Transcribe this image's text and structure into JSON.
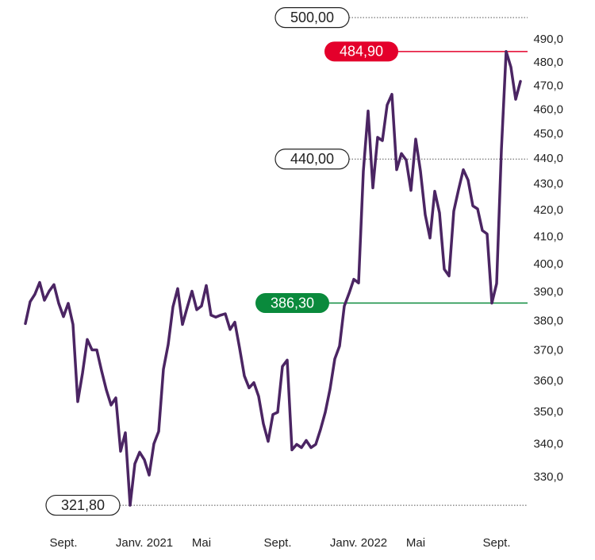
{
  "chart_data": {
    "type": "line",
    "log_scale": true,
    "grid": false,
    "categories": [
      null,
      null,
      null,
      null,
      null,
      null,
      null,
      null,
      "Sept.",
      null,
      null,
      null,
      null,
      null,
      null,
      null,
      null,
      null,
      null,
      null,
      null,
      null,
      null,
      null,
      null,
      "Janv. 2021",
      null,
      null,
      null,
      null,
      null,
      null,
      null,
      null,
      null,
      null,
      null,
      "Mai",
      null,
      null,
      null,
      null,
      null,
      null,
      null,
      null,
      null,
      null,
      null,
      null,
      null,
      null,
      null,
      "Sept.",
      null,
      null,
      null,
      null,
      null,
      null,
      null,
      null,
      null,
      null,
      null,
      null,
      null,
      null,
      null,
      null,
      "Janv. 2022",
      null,
      null,
      null,
      null,
      null,
      null,
      null,
      null,
      null,
      null,
      null,
      "Mai",
      null,
      null,
      null,
      null,
      null,
      null,
      null,
      null,
      null,
      null,
      null,
      null,
      null,
      null,
      null,
      null,
      "Sept.",
      null,
      null,
      null,
      null,
      null
    ],
    "series": [
      {
        "color": "#4b2563",
        "values": [
          379.2,
          386.8,
          389.4,
          393.6,
          387.3,
          390.5,
          392.8,
          386.2,
          381.6,
          386.2,
          378.9,
          353.4,
          362.6,
          373.8,
          370.3,
          370.3,
          363.4,
          357.2,
          352.3,
          354.6,
          337.9,
          343.6,
          321.8,
          334.1,
          337.6,
          335.3,
          330.7,
          340.2,
          344.0,
          363.9,
          372.1,
          385.0,
          391.4,
          378.9,
          384.8,
          390.5,
          384.0,
          385.3,
          392.5,
          382.1,
          381.4,
          382.1,
          382.6,
          377.2,
          379.7,
          370.9,
          361.7,
          357.8,
          359.5,
          355.1,
          346.4,
          340.9,
          349.3,
          350.0,
          364.8,
          366.9,
          338.3,
          340.0,
          339.0,
          341.2,
          339.0,
          340.0,
          344.6,
          350.0,
          357.4,
          367.3,
          371.6,
          385.3,
          389.7,
          394.7,
          393.4,
          435.2,
          459.5,
          428.7,
          448.7,
          447.4,
          462.0,
          466.5,
          435.8,
          442.2,
          439.6,
          427.7,
          448.0,
          435.2,
          418.4,
          409.7,
          427.4,
          419.1,
          398.3,
          395.9,
          419.8,
          428.0,
          435.8,
          431.7,
          421.8,
          420.6,
          412.5,
          411.2,
          386.3,
          393.2,
          443.6,
          484.9,
          478.1,
          464.4,
          472.0
        ]
      }
    ],
    "ylim": [
      318.6,
      508
    ],
    "yticks": [
      {
        "value": 330,
        "label": "330,0"
      },
      {
        "value": 340,
        "label": "340,0"
      },
      {
        "value": 350,
        "label": "350,0"
      },
      {
        "value": 360,
        "label": "360,0"
      },
      {
        "value": 370,
        "label": "370,0"
      },
      {
        "value": 380,
        "label": "380,0"
      },
      {
        "value": 390,
        "label": "390,0"
      },
      {
        "value": 400,
        "label": "400,0"
      },
      {
        "value": 410,
        "label": "410,0"
      },
      {
        "value": 420,
        "label": "420,0"
      },
      {
        "value": 430,
        "label": "430,0"
      },
      {
        "value": 440,
        "label": "440,0"
      },
      {
        "value": 450,
        "label": "450,0"
      },
      {
        "value": 460,
        "label": "460,0"
      },
      {
        "value": 470,
        "label": "470,0"
      },
      {
        "value": 480,
        "label": "480,0"
      },
      {
        "value": 490,
        "label": "490,0"
      }
    ],
    "annotations": [
      {
        "value": 500,
        "label": "500,00"
      },
      {
        "value": 484.9,
        "label": "484,90",
        "color": "#e4002b"
      },
      {
        "value": 440,
        "label": "440,00"
      },
      {
        "value": 386.3,
        "label": "386,30",
        "color": "#0a8a3c"
      },
      {
        "value": 321.8,
        "label": "321,80"
      }
    ]
  }
}
